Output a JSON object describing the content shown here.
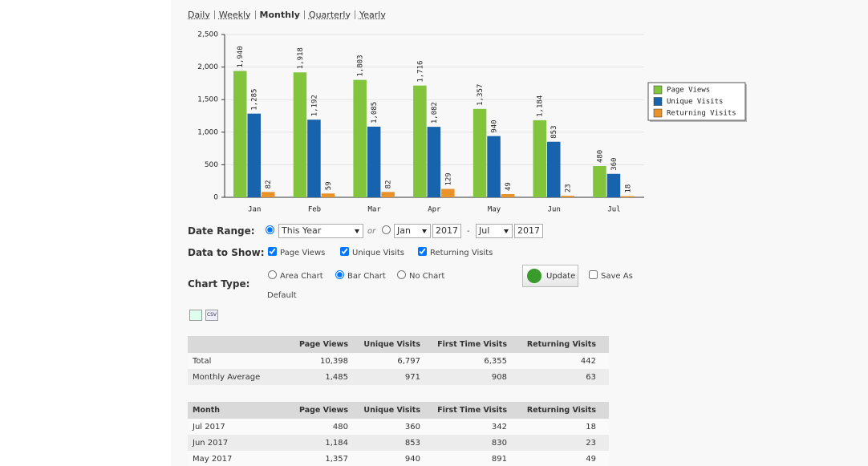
{
  "nav": {
    "links": [
      "Daily",
      "Weekly",
      "Monthly",
      "Quarterly",
      "Yearly"
    ],
    "active": 2
  },
  "chart_data": {
    "type": "bar",
    "categories": [
      "Jan",
      "Feb",
      "Mar",
      "Apr",
      "May",
      "Jun",
      "Jul"
    ],
    "series": [
      {
        "name": "Page Views",
        "color": "#82c43c",
        "values": [
          1940,
          1918,
          1803,
          1716,
          1357,
          1184,
          480
        ],
        "value_labels": [
          "1,940",
          "1,918",
          "1,803",
          "1,716",
          "1,357",
          "1,184",
          "480"
        ]
      },
      {
        "name": "Unique Visits",
        "color": "#1763ad",
        "values": [
          1285,
          1192,
          1085,
          1082,
          940,
          853,
          360
        ],
        "value_labels": [
          "1,285",
          "1,192",
          "1,085",
          "1,082",
          "940",
          "853",
          "360"
        ]
      },
      {
        "name": "Returning Visits",
        "color": "#e8922c",
        "values": [
          82,
          59,
          82,
          129,
          49,
          23,
          18
        ],
        "value_labels": [
          "82",
          "59",
          "82",
          "129",
          "49",
          "23",
          "18"
        ]
      }
    ],
    "ylim": [
      0,
      2500
    ],
    "yticks": [
      0,
      500,
      {
        "value": 1000,
        "label": "1,000"
      },
      {
        "value": 1500,
        "label": "1,500"
      },
      {
        "value": 2000,
        "label": "2,000"
      },
      {
        "value": 2500,
        "label": "2,500"
      }
    ],
    "grid": true,
    "legend": "right"
  },
  "form": {
    "date_range": {
      "label": "Date Range:",
      "preset": "This Year",
      "or": "or",
      "from_month": "Jan",
      "from_year": "2017",
      "dash": "-",
      "to_month": "Jul",
      "to_year": "2017"
    },
    "data_to_show": {
      "label": "Data to Show:",
      "options": [
        "Page Views",
        "Unique Visits",
        "Returning Visits"
      ]
    },
    "chart_type": {
      "label": "Chart Type:",
      "options": [
        "Area Chart",
        "Bar Chart",
        "No Chart"
      ],
      "selected": 1,
      "default": "Default"
    },
    "update": "Update",
    "save_as": "Save As"
  },
  "export_icons": {
    "csv": "CSV"
  },
  "summary_table": {
    "header": [
      "Page Views",
      "Unique Visits",
      "First Time Visits",
      "Returning Visits"
    ],
    "rows": [
      [
        "Total",
        "10,398",
        "6,797",
        "6,355",
        "442"
      ],
      [
        "Monthly Average",
        "1,485",
        "971",
        "908",
        "63"
      ]
    ]
  },
  "monthly_table": {
    "header": [
      "Month",
      "Page Views",
      "Unique Visits",
      "First Time Visits",
      "Returning Visits"
    ],
    "rows": [
      [
        "Jul 2017",
        "480",
        "360",
        "342",
        "18"
      ],
      [
        "Jun 2017",
        "1,184",
        "853",
        "830",
        "23"
      ],
      [
        "May 2017",
        "1,357",
        "940",
        "891",
        "49"
      ]
    ]
  }
}
